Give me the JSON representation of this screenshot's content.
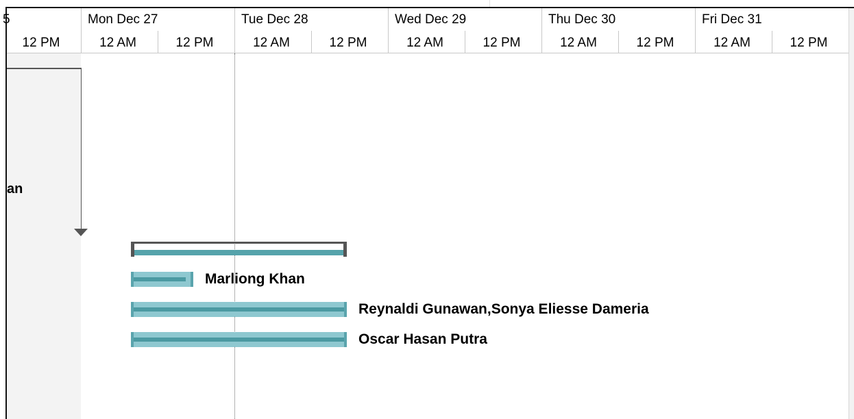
{
  "timeline": {
    "days": [
      {
        "label": "5"
      },
      {
        "label": "Mon Dec 27"
      },
      {
        "label": "Tue Dec 28"
      },
      {
        "label": "Wed Dec 29"
      },
      {
        "label": "Thu Dec 30"
      },
      {
        "label": "Fri Dec 31"
      }
    ],
    "hours": [
      "12 PM",
      "12 AM",
      "12 PM",
      "12 AM",
      "12 PM",
      "12 AM",
      "12 PM",
      "12 AM",
      "12 PM",
      "12 AM",
      "12 PM"
    ]
  },
  "rows": {
    "partial_label": "an",
    "tasks": [
      {
        "label": "Marliong Khan"
      },
      {
        "label": "Reynaldi Gunawan,Sonya Eliesse Dameria"
      },
      {
        "label": "Oscar Hasan Putra"
      }
    ]
  },
  "colors": {
    "bar_fill": "#8ec8d0",
    "bar_progress": "#4b9aa2",
    "summary_fill": "#56a3ab",
    "summary_frame": "#555555"
  }
}
